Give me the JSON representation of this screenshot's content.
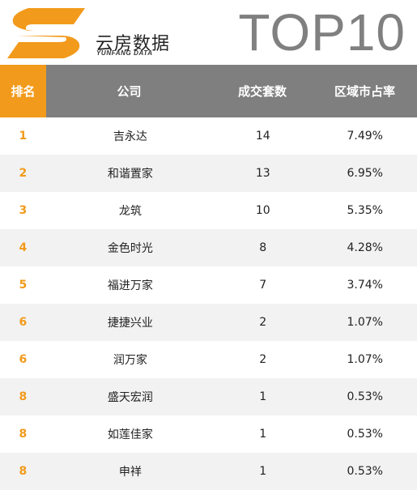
{
  "header": {
    "brand_cn": "云房数据",
    "brand_en": "YUNFANG DATA",
    "title": "TOP10",
    "logo_color": "#f29a1b"
  },
  "table": {
    "columns": [
      "排名",
      "公司",
      "成交套数",
      "区域市占率"
    ],
    "rows": [
      {
        "rank": "1",
        "company": "吉永达",
        "count": "14",
        "share": "7.49%"
      },
      {
        "rank": "2",
        "company": "和谐置家",
        "count": "13",
        "share": "6.95%"
      },
      {
        "rank": "3",
        "company": "龙筑",
        "count": "10",
        "share": "5.35%"
      },
      {
        "rank": "4",
        "company": "金色时光",
        "count": "8",
        "share": "4.28%"
      },
      {
        "rank": "5",
        "company": "福进万家",
        "count": "7",
        "share": "3.74%"
      },
      {
        "rank": "6",
        "company": "捷捷兴业",
        "count": "2",
        "share": "1.07%"
      },
      {
        "rank": "6",
        "company": "润万家",
        "count": "2",
        "share": "1.07%"
      },
      {
        "rank": "8",
        "company": "盛天宏润",
        "count": "1",
        "share": "0.53%"
      },
      {
        "rank": "8",
        "company": "如莲佳家",
        "count": "1",
        "share": "0.53%"
      },
      {
        "rank": "8",
        "company": "申祥",
        "count": "1",
        "share": "0.53%"
      }
    ]
  }
}
